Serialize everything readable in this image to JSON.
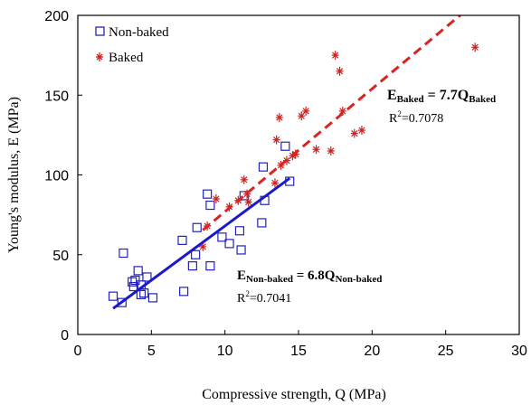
{
  "chart_data": {
    "type": "scatter",
    "xlabel": "Compressive strength, Q (MPa)",
    "ylabel": "Young's modulus, E (MPa)",
    "xlim": [
      0,
      30
    ],
    "ylim": [
      0,
      200
    ],
    "x_ticks": [
      "0",
      "5",
      "10",
      "15",
      "20",
      "25",
      "30"
    ],
    "y_ticks": [
      "0",
      "50",
      "100",
      "150",
      "200"
    ],
    "grid": false,
    "legend_position": "top-left",
    "series": [
      {
        "name": "Non-baked",
        "marker": "open-square",
        "color": "#2222bb",
        "points": [
          [
            2.4,
            24
          ],
          [
            3.0,
            20
          ],
          [
            3.1,
            51
          ],
          [
            3.7,
            33
          ],
          [
            3.8,
            30
          ],
          [
            3.9,
            34
          ],
          [
            4.1,
            40
          ],
          [
            4.3,
            25
          ],
          [
            4.3,
            31
          ],
          [
            4.5,
            26
          ],
          [
            4.7,
            36
          ],
          [
            5.1,
            23
          ],
          [
            7.1,
            59
          ],
          [
            7.2,
            27
          ],
          [
            7.8,
            43
          ],
          [
            8.0,
            50
          ],
          [
            8.1,
            67
          ],
          [
            8.8,
            88
          ],
          [
            9.0,
            81
          ],
          [
            9.0,
            43
          ],
          [
            9.8,
            61
          ],
          [
            10.3,
            57
          ],
          [
            11.0,
            65
          ],
          [
            11.1,
            53
          ],
          [
            11.3,
            87
          ],
          [
            12.5,
            70
          ],
          [
            12.6,
            105
          ],
          [
            12.7,
            84
          ],
          [
            14.1,
            118
          ],
          [
            14.4,
            96
          ]
        ]
      },
      {
        "name": "Baked",
        "marker": "asterisk",
        "color": "#cc2222",
        "points": [
          [
            8.5,
            55
          ],
          [
            8.8,
            68
          ],
          [
            9.4,
            85
          ],
          [
            10.3,
            80
          ],
          [
            10.9,
            84
          ],
          [
            11.3,
            97
          ],
          [
            11.5,
            88
          ],
          [
            11.6,
            83
          ],
          [
            13.4,
            95
          ],
          [
            13.5,
            122
          ],
          [
            13.7,
            136
          ],
          [
            13.8,
            106
          ],
          [
            14.2,
            109
          ],
          [
            14.6,
            112
          ],
          [
            14.8,
            113
          ],
          [
            15.2,
            137
          ],
          [
            15.5,
            140
          ],
          [
            16.2,
            116
          ],
          [
            17.2,
            115
          ],
          [
            17.5,
            175
          ],
          [
            17.8,
            165
          ],
          [
            18.0,
            140
          ],
          [
            18.8,
            126
          ],
          [
            19.3,
            128
          ],
          [
            27.0,
            180
          ]
        ]
      }
    ],
    "fits": [
      {
        "series": "Non-baked",
        "color": "#1a1acc",
        "style": "solid",
        "slope": 6.8,
        "x_range": [
          2.4,
          14.4
        ],
        "equation_lhs": "E",
        "equation_lhs_sub": "Non-baked",
        "equation_rhs": " = 6.8Q",
        "equation_rhs_sub": "Non-baked",
        "r2_prefix": "R",
        "r2_sup": "2",
        "r2_value": "=0.7041"
      },
      {
        "series": "Baked",
        "color": "#dd2222",
        "style": "dashed",
        "slope": 7.7,
        "x_range": [
          8.5,
          26.0
        ],
        "equation_lhs": "E",
        "equation_lhs_sub": "Baked",
        "equation_rhs": " = 7.7Q",
        "equation_rhs_sub": "Baked",
        "r2_prefix": "R",
        "r2_sup": "2",
        "r2_value": "=0.7078"
      }
    ]
  }
}
